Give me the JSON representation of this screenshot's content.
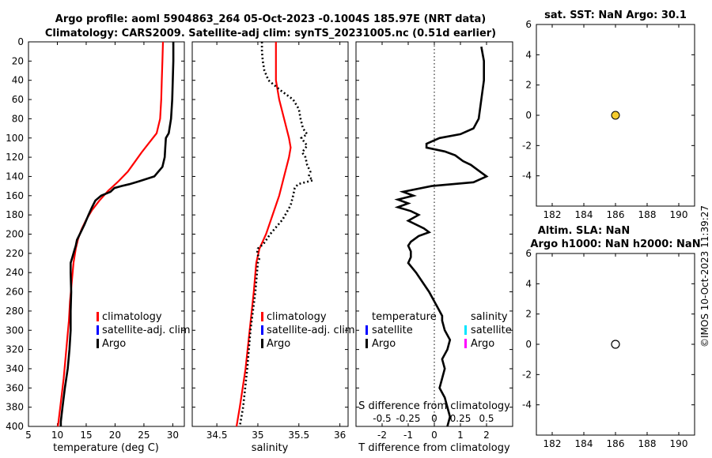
{
  "header": {
    "line1": "Argo profile: aoml 5904863_264 05-Oct-2023 -0.1004S 185.97E (NRT data)",
    "line2": "Climatology: CARS2009. Satellite-adj clim: synTS_20231005.nc (0.51d earlier)"
  },
  "timestamp": "©IMOS 10-Oct-2023 11:39:27",
  "colors": {
    "climatology": "#ff0000",
    "satellite": "#0000ff",
    "argo": "#000000",
    "sat_salinity": "#00e5ff",
    "argo_salinity": "#ff00ff",
    "sst_marker": "#f5cc2e"
  },
  "chart_data": [
    {
      "id": "temperature",
      "type": "line",
      "xlabel": "temperature (deg C)",
      "ylim": [
        0,
        400
      ],
      "xlim": [
        5,
        32
      ],
      "x_ticks": [
        "5",
        "10",
        "15",
        "20",
        "25",
        "30"
      ],
      "y_ticks": [
        "0",
        "20",
        "40",
        "60",
        "80",
        "100",
        "120",
        "140",
        "160",
        "180",
        "200",
        "220",
        "240",
        "260",
        "280",
        "300",
        "320",
        "340",
        "360",
        "380",
        "400"
      ],
      "legend": [
        "climatology",
        "satellite-adj. clim",
        "Argo"
      ],
      "series": [
        {
          "name": "climatology",
          "depth": [
            0,
            20,
            40,
            60,
            80,
            95,
            105,
            115,
            125,
            135,
            145,
            155,
            165,
            175,
            185,
            195,
            205,
            215,
            230,
            250,
            270,
            290,
            310,
            330,
            350,
            370,
            390,
            400
          ],
          "values": [
            28.3,
            28.2,
            28.1,
            28.0,
            27.8,
            27.2,
            25.9,
            24.6,
            23.4,
            22.2,
            20.6,
            18.8,
            17.3,
            16.0,
            15.0,
            14.2,
            13.6,
            13.2,
            12.8,
            12.5,
            12.2,
            12.0,
            11.7,
            11.4,
            11.1,
            10.7,
            10.3,
            10.1
          ]
        },
        {
          "name": "Argo",
          "depth": [
            0,
            20,
            40,
            60,
            80,
            95,
            100,
            110,
            120,
            130,
            140,
            145,
            148,
            150,
            152,
            156,
            160,
            165,
            172,
            180,
            190,
            200,
            206,
            212,
            218,
            224,
            230,
            240,
            260,
            280,
            300,
            320,
            340,
            360,
            380,
            395,
            400
          ],
          "values": [
            30.1,
            30.1,
            30.0,
            29.9,
            29.7,
            29.3,
            28.8,
            28.7,
            28.6,
            28.2,
            26.8,
            24.2,
            22.5,
            21.1,
            19.9,
            19.2,
            17.6,
            16.6,
            16.0,
            15.4,
            14.7,
            13.9,
            13.4,
            13.2,
            12.9,
            12.6,
            12.3,
            12.3,
            12.4,
            12.3,
            12.3,
            12.1,
            11.8,
            11.3,
            10.9,
            10.6,
            10.6
          ]
        }
      ]
    },
    {
      "id": "salinity",
      "type": "line",
      "xlabel": "salinity",
      "ylim": [
        0,
        400
      ],
      "xlim": [
        34.2,
        36.1
      ],
      "x_ticks": [
        "34.5",
        "35",
        "35.5",
        "36"
      ],
      "legend": [
        "climatology",
        "satellite-adj. clim",
        "Argo"
      ],
      "series": [
        {
          "name": "climatology",
          "depth": [
            0,
            20,
            40,
            60,
            80,
            100,
            110,
            120,
            140,
            160,
            180,
            200,
            215,
            230,
            260,
            300,
            340,
            380,
            400
          ],
          "values": [
            35.22,
            35.22,
            35.22,
            35.26,
            35.32,
            35.38,
            35.4,
            35.38,
            35.32,
            35.26,
            35.18,
            35.1,
            35.02,
            34.98,
            34.95,
            34.9,
            34.85,
            34.78,
            34.74
          ]
        },
        {
          "name": "Argo",
          "depth": [
            0,
            10,
            20,
            30,
            40,
            50,
            60,
            70,
            80,
            90,
            96,
            100,
            108,
            115,
            120,
            128,
            135,
            140,
            144,
            148,
            152,
            160,
            170,
            185,
            200,
            210,
            215,
            220,
            225,
            230,
            260,
            300,
            340,
            380,
            400
          ],
          "values": [
            35.05,
            35.05,
            35.06,
            35.08,
            35.13,
            35.27,
            35.43,
            35.5,
            35.52,
            35.55,
            35.6,
            35.53,
            35.6,
            35.54,
            35.58,
            35.6,
            35.64,
            35.62,
            35.67,
            35.49,
            35.45,
            35.43,
            35.4,
            35.3,
            35.15,
            35.07,
            35.0,
            34.99,
            35.02,
            35.0,
            34.97,
            34.91,
            34.87,
            34.82,
            34.78
          ]
        }
      ]
    },
    {
      "id": "difference",
      "type": "line",
      "xlabel": "T difference from climatology",
      "xlabel_secondary": "S difference from climatology",
      "ylim": [
        0,
        400
      ],
      "xlim": [
        -3,
        3
      ],
      "x_ticks": [
        "-2",
        "-1",
        "0",
        "1",
        "2"
      ],
      "x_ticks_secondary": [
        "-0.5",
        "-0.25",
        "0",
        "0.25",
        "0.5"
      ],
      "legend_temperature": [
        "temperature",
        "satellite",
        "Argo"
      ],
      "legend_salinity": [
        "salinity",
        "satellite",
        "Argo"
      ],
      "series": [
        {
          "name": "Argo T difference",
          "depth": [
            5,
            20,
            40,
            60,
            80,
            90,
            96,
            100,
            106,
            110,
            114,
            118,
            124,
            128,
            132,
            136,
            140,
            146,
            150,
            156,
            160,
            164,
            168,
            172,
            176,
            180,
            186,
            194,
            198,
            202,
            208,
            212,
            218,
            224,
            230,
            240,
            260,
            275,
            285,
            290,
            300,
            310,
            320,
            330,
            340,
            350,
            360,
            370,
            380,
            390,
            400
          ],
          "values": [
            1.8,
            1.9,
            1.9,
            1.8,
            1.7,
            1.5,
            1.0,
            0.2,
            -0.3,
            -0.3,
            0.4,
            0.8,
            1.1,
            1.4,
            1.6,
            1.8,
            2.0,
            1.5,
            -0.1,
            -1.2,
            -0.8,
            -1.4,
            -1.0,
            -1.4,
            -0.9,
            -0.6,
            -1.0,
            -0.4,
            -0.2,
            -0.6,
            -0.9,
            -1.0,
            -0.9,
            -0.9,
            -1.0,
            -0.7,
            -0.2,
            0.1,
            0.3,
            0.3,
            0.4,
            0.6,
            0.5,
            0.3,
            0.4,
            0.3,
            0.2,
            0.4,
            0.5,
            0.6,
            0.5
          ]
        }
      ]
    },
    {
      "id": "sst",
      "type": "scatter",
      "title": "sat. SST: NaN Argo: 30.1",
      "xlim": [
        181,
        191
      ],
      "ylim": [
        -6,
        6
      ],
      "x_ticks": [
        "182",
        "184",
        "186",
        "188",
        "190"
      ],
      "y_ticks": [
        "6",
        "4",
        "2",
        "0",
        "-2",
        "-4"
      ],
      "points": [
        {
          "x": 186,
          "y": 0
        }
      ]
    },
    {
      "id": "sla",
      "type": "scatter",
      "title_line1": "Altim. SLA: NaN",
      "title_line2": "Argo h1000: NaN h2000: NaN",
      "xlim": [
        181,
        191
      ],
      "ylim": [
        -6,
        6
      ],
      "x_ticks": [
        "182",
        "184",
        "186",
        "188",
        "190"
      ],
      "y_ticks": [
        "6",
        "4",
        "2",
        "0",
        "-2",
        "-4"
      ],
      "points": [
        {
          "x": 186,
          "y": 0
        }
      ]
    }
  ]
}
